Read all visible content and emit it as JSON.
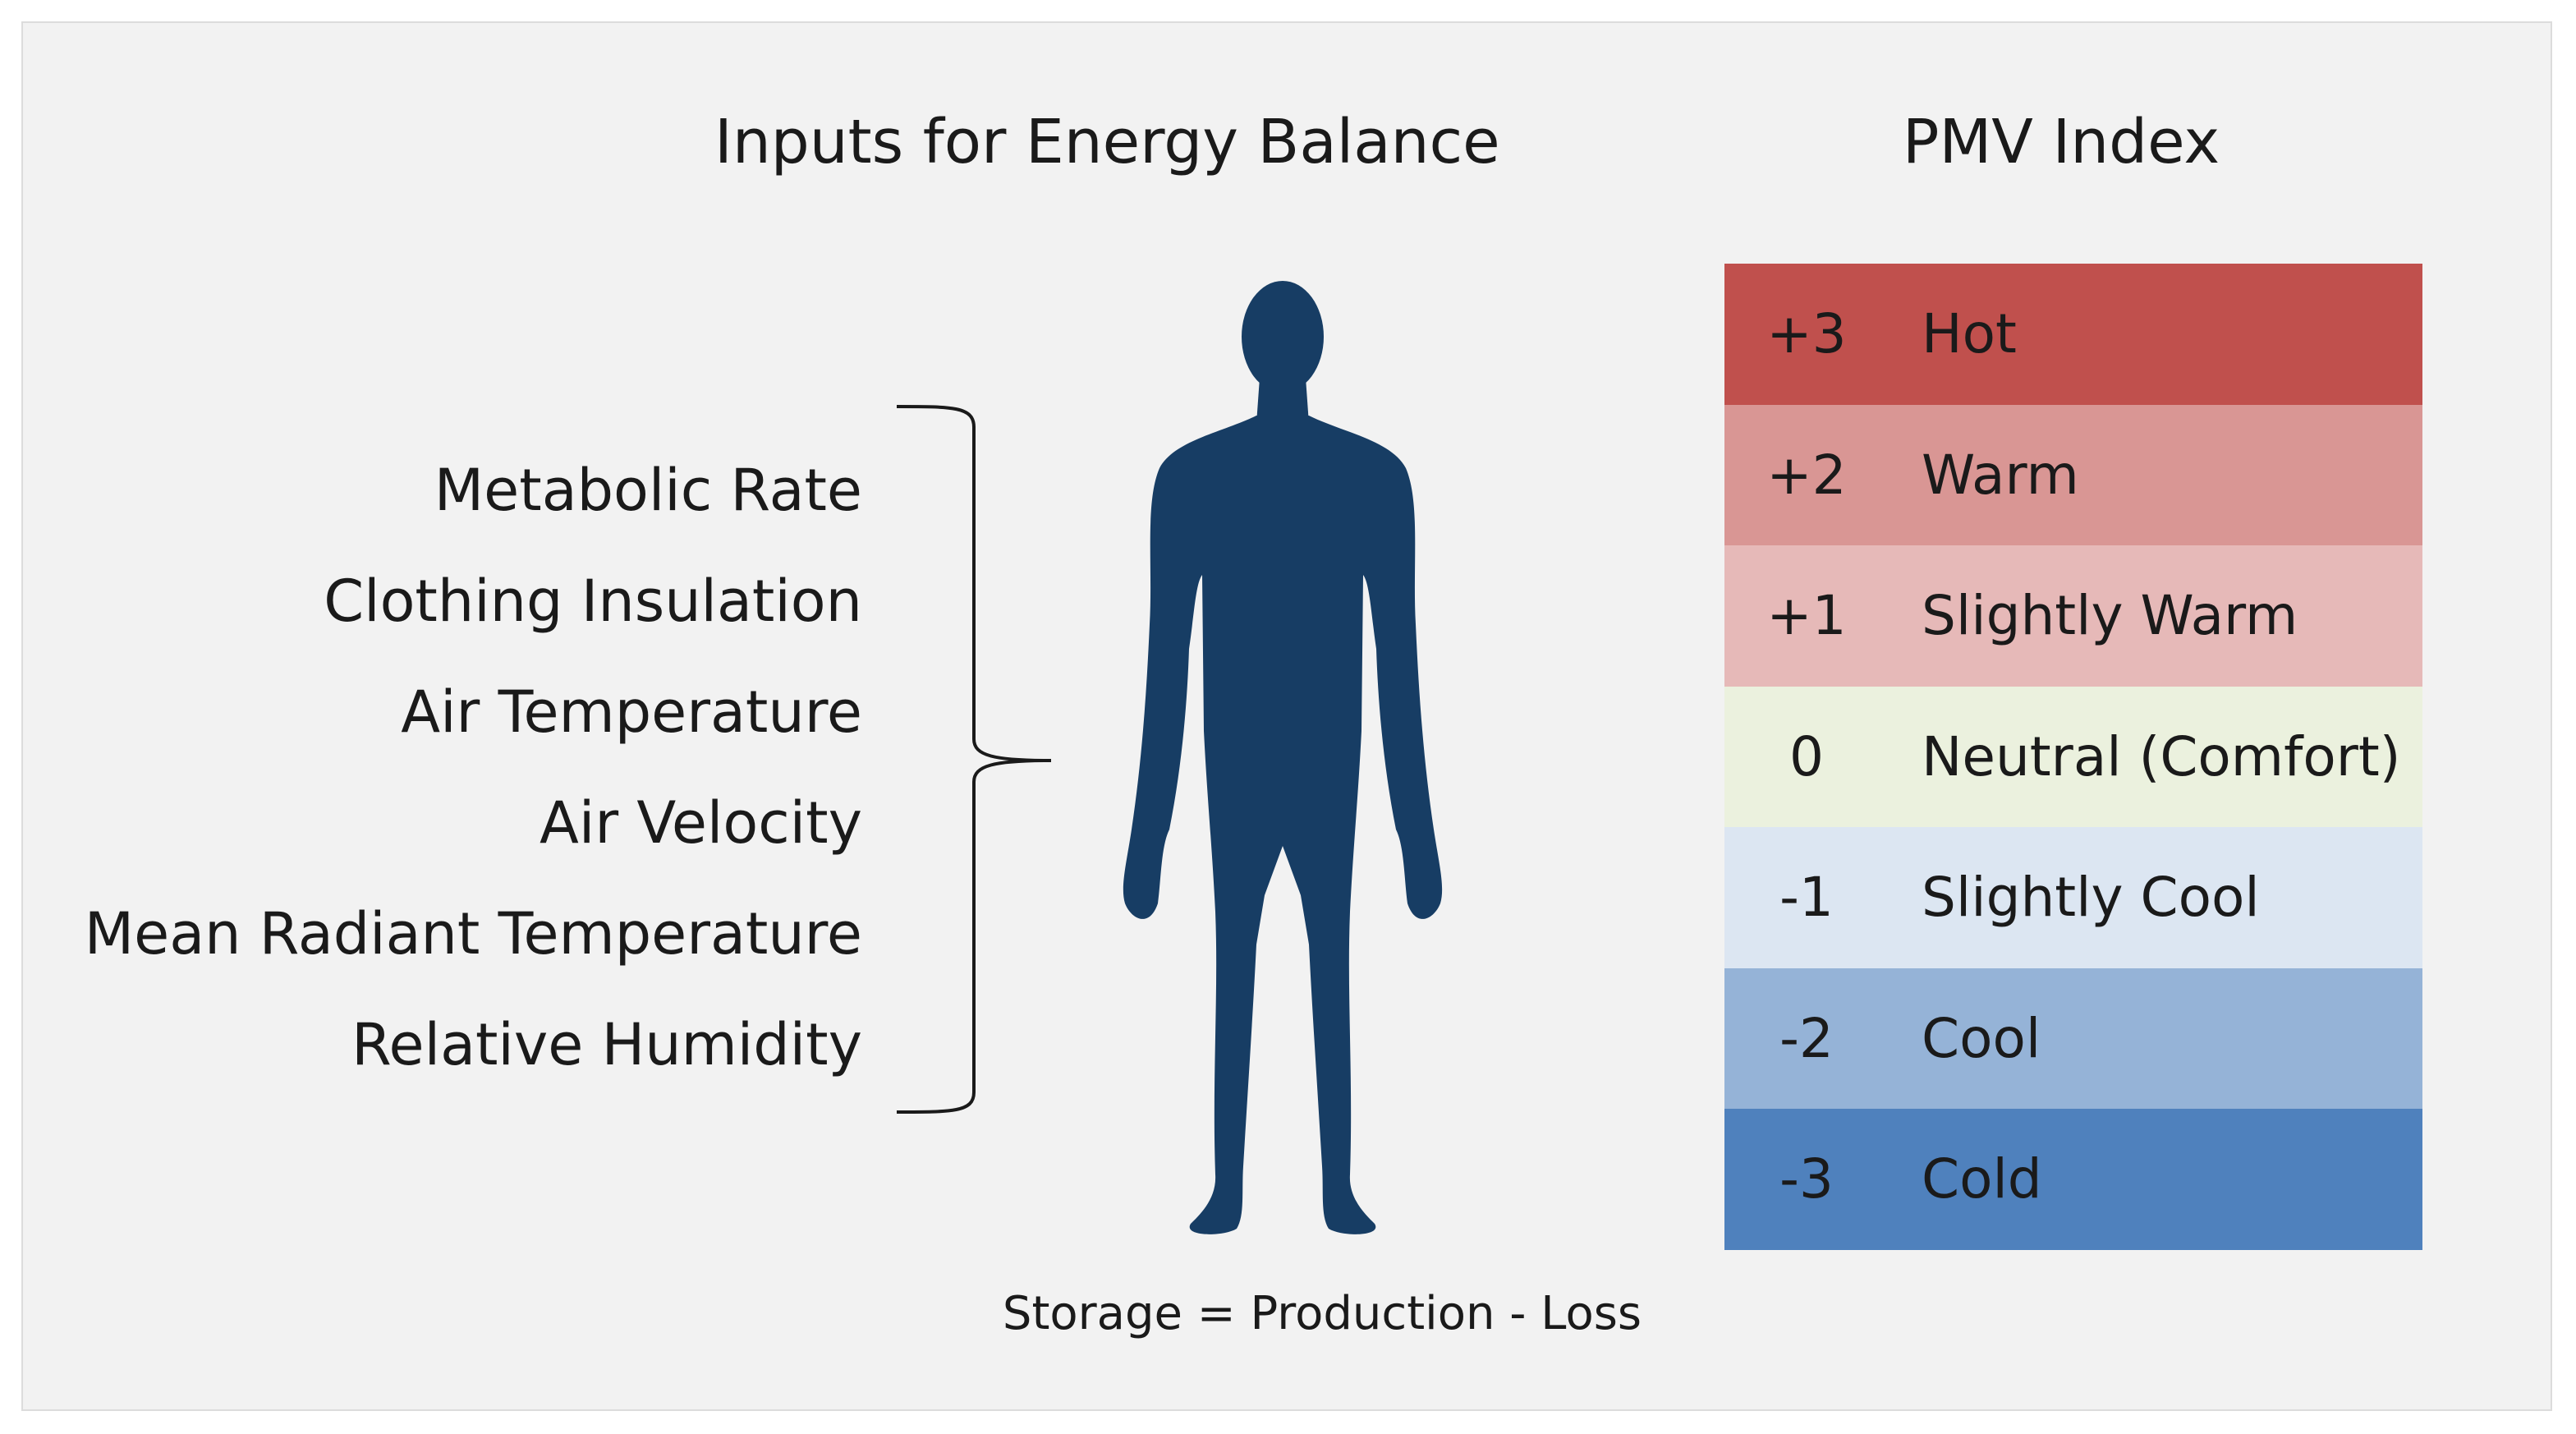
{
  "inputs_title": "Inputs for Energy Balance",
  "pmv_title": "PMV Index",
  "inputs": [
    "Metabolic Rate",
    "Clothing Insulation",
    "Air Temperature",
    "Air Velocity",
    "Mean Radiant Temperature",
    "Relative Humidity"
  ],
  "formula": "Storage = Production - Loss",
  "pmv_scale": [
    {
      "value": "+3",
      "label": "Hot",
      "color": "#c0504d",
      "text_color": "#1a1a1a"
    },
    {
      "value": "+2",
      "label": "Warm",
      "color": "#d99694",
      "text_color": "#1a1a1a"
    },
    {
      "value": "+1",
      "label": "Slightly Warm",
      "color": "#e6b9b8",
      "text_color": "#1a1a1a"
    },
    {
      "value": "0",
      "label": "Neutral (Comfort)",
      "color": "#ebf1de",
      "text_color": "#1a1a1a"
    },
    {
      "value": "-1",
      "label": "Slightly Cool",
      "color": "#dce6f2",
      "text_color": "#1a1a1a"
    },
    {
      "value": "-2",
      "label": "Cool",
      "color": "#95b3d7",
      "text_color": "#1a1a1a"
    },
    {
      "value": "-3",
      "label": "Cold",
      "color": "#4f81bd",
      "text_color": "#1a1a1a"
    }
  ],
  "figure_color": "#173d64"
}
